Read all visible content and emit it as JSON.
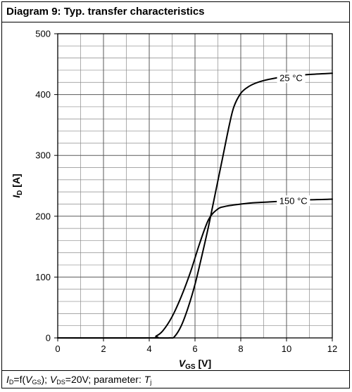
{
  "title": "Diagram 9: Typ. transfer characteristics",
  "caption": {
    "id_main": "I",
    "id_sub": "D",
    "eq_f": "=f(",
    "vgs_main": "V",
    "vgs_sub": "GS",
    "after_vgs": "); ",
    "vds_main": "V",
    "vds_sub": "DS",
    "after_vds": "=20V; parameter: ",
    "t_main": "T",
    "t_sub": "j"
  },
  "chart_data": {
    "type": "line",
    "title": "Diagram 9: Typ. transfer characteristics",
    "xlabel": {
      "main": "V",
      "sub": "GS",
      "unit": " [V]"
    },
    "ylabel": {
      "main": "I",
      "sub": "D",
      "unit": " [A]"
    },
    "xlim": [
      0,
      12
    ],
    "ylim": [
      0,
      500
    ],
    "xticks": [
      0,
      2,
      4,
      6,
      8,
      10,
      12
    ],
    "yticks": [
      0,
      100,
      200,
      300,
      400,
      500
    ],
    "x_minor_step": 1,
    "y_minor_step": 20,
    "grid": true,
    "series": [
      {
        "name": "25 °C",
        "x": [
          0,
          4.0,
          4.9,
          5.1,
          5.4,
          5.7,
          6.0,
          6.3,
          6.6,
          6.9,
          7.2,
          7.5,
          7.7,
          8.0,
          8.3,
          8.6,
          9.0,
          9.5,
          10.0,
          11.0,
          12.0
        ],
        "y": [
          0,
          0,
          0,
          2,
          20,
          50,
          88,
          135,
          185,
          240,
          295,
          350,
          380,
          402,
          412,
          418,
          423,
          427,
          430,
          433,
          435
        ]
      },
      {
        "name": "150 °C",
        "x": [
          0,
          4.0,
          4.3,
          4.6,
          5.0,
          5.4,
          5.8,
          6.2,
          6.6,
          7.0,
          7.3,
          7.6,
          8.0,
          8.5,
          9.0,
          10.0,
          11.0,
          12.0
        ],
        "y": [
          0,
          0,
          3,
          12,
          35,
          68,
          108,
          155,
          195,
          212,
          216,
          218,
          220,
          222,
          223,
          225,
          227,
          228
        ]
      }
    ],
    "annotations": [
      {
        "text": "25 °C",
        "x": 10.2,
        "y": 427,
        "series": 0
      },
      {
        "text": "150 °C",
        "x": 10.3,
        "y": 225,
        "series": 1
      }
    ]
  }
}
